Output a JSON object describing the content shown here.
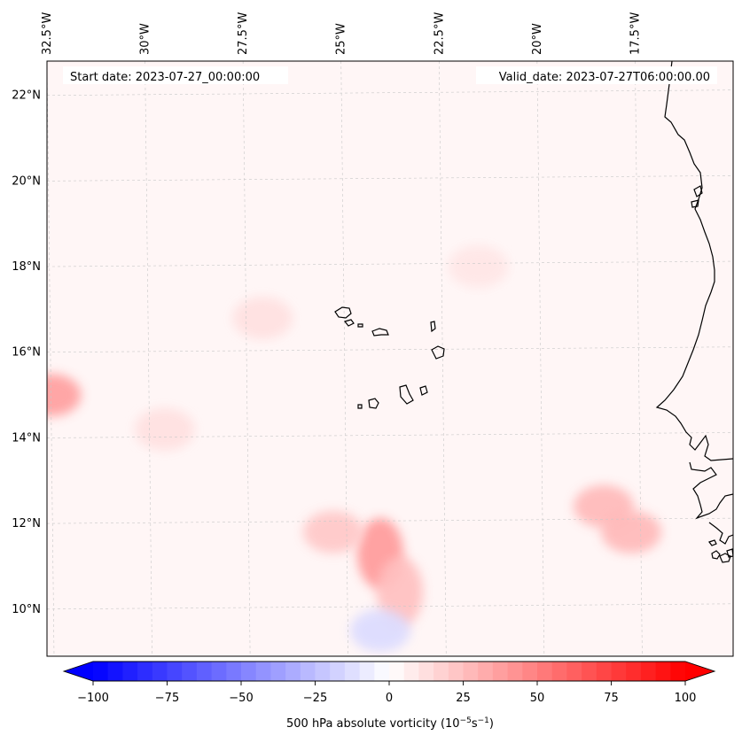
{
  "map": {
    "start_date_label": "Start date: 2023-07-27_00:00:00",
    "valid_date_label": "Valid_date: 2023-07-27T06:00:00.00",
    "lon_labels": [
      "32.5°W",
      "30°W",
      "27.5°W",
      "25°W",
      "22.5°W",
      "20°W",
      "17.5°W"
    ],
    "lat_labels": [
      "22°N",
      "20°N",
      "18°N",
      "16°N",
      "14°N",
      "12°N",
      "10°N"
    ],
    "lon_range": [
      -32.5,
      -15.0
    ],
    "lat_range": [
      8.9,
      22.8
    ],
    "gridlines": true,
    "coastline_color": "#000000"
  },
  "colorbar": {
    "label_prefix": "500 hPa absolute vorticity (10",
    "label_exp1": "−5",
    "label_mid": "s",
    "label_exp2": "−1",
    "label_suffix": ")",
    "ticks": [
      "−100",
      "−75",
      "−50",
      "−25",
      "0",
      "25",
      "50",
      "75",
      "100"
    ],
    "range": [
      -100,
      100
    ],
    "levels": 40,
    "extend": "both",
    "colors": {
      "min": "#0000ff",
      "mid": "#ffffff",
      "max": "#ff0000"
    }
  },
  "vorticity_field": {
    "blobs": [
      {
        "lon": -24.0,
        "lat": 11.3,
        "value": 40
      },
      {
        "lon": -23.5,
        "lat": 10.4,
        "value": 25
      },
      {
        "lon": -32.4,
        "lat": 15.0,
        "value": 38
      },
      {
        "lon": -25.2,
        "lat": 11.8,
        "value": 22
      },
      {
        "lon": -18.3,
        "lat": 12.4,
        "value": 28
      },
      {
        "lon": -17.6,
        "lat": 11.8,
        "value": 28
      },
      {
        "lon": -27.0,
        "lat": 16.8,
        "value": 12
      },
      {
        "lon": -24.0,
        "lat": 9.5,
        "value": -14
      },
      {
        "lon": -21.5,
        "lat": 18.0,
        "value": 10
      },
      {
        "lon": -29.5,
        "lat": 14.2,
        "value": 12
      }
    ]
  }
}
